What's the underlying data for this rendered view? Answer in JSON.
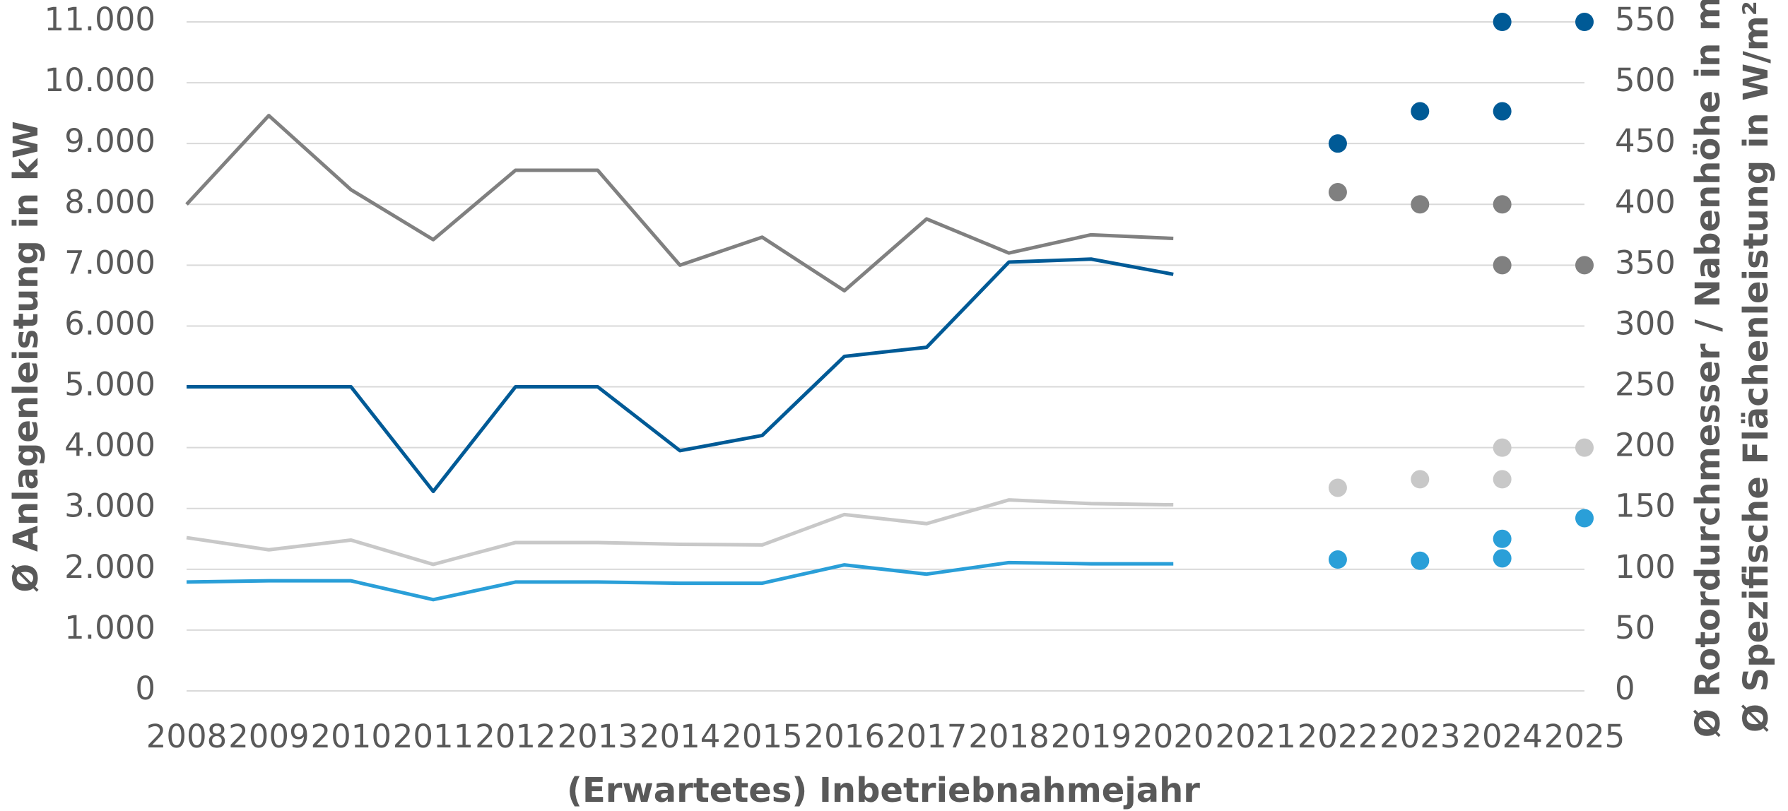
{
  "chart_data": {
    "type": "line",
    "xlabel": "(Erwartetes) Inbetriebnahmejahr",
    "ylabel": "Ø Anlagenleistung in kW",
    "y2label": [
      "Ø Rotordurchmesser / Nabenhöhe in m",
      "Ø Spezifische Flächenleistung in W/m²"
    ],
    "categories": [
      "2008",
      "2009",
      "2010",
      "2011",
      "2012",
      "2013",
      "2014",
      "2015",
      "2016",
      "2017",
      "2018",
      "2019",
      "2020",
      "2021",
      "2022",
      "2023",
      "2024",
      "2025"
    ],
    "ylim": [
      0,
      11000
    ],
    "yticks": [
      {
        "value": 0,
        "label": "0"
      },
      {
        "value": 1000,
        "label": "1.000"
      },
      {
        "value": 2000,
        "label": "2.000"
      },
      {
        "value": 3000,
        "label": "3.000"
      },
      {
        "value": 4000,
        "label": "4.000"
      },
      {
        "value": 5000,
        "label": "5.000"
      },
      {
        "value": 6000,
        "label": "6.000"
      },
      {
        "value": 7000,
        "label": "7.000"
      },
      {
        "value": 8000,
        "label": "8.000"
      },
      {
        "value": 9000,
        "label": "9.000"
      },
      {
        "value": 10000,
        "label": "10.000"
      },
      {
        "value": 11000,
        "label": "11.000"
      }
    ],
    "y2lim": [
      0,
      550
    ],
    "y2ticks": [
      0,
      50,
      100,
      150,
      200,
      250,
      300,
      350,
      400,
      450,
      500,
      550
    ],
    "grid": true,
    "series": [
      {
        "color": "#005a96",
        "values": [
          5000,
          5000,
          5000,
          3280,
          5000,
          5000,
          3950,
          4200,
          5500,
          5650,
          7050,
          7100,
          6850,
          null,
          null,
          null,
          null,
          null
        ]
      },
      {
        "color": "#808080",
        "axis": "y2",
        "values": [
          400,
          473,
          412,
          371,
          428,
          428,
          350,
          373,
          329,
          388,
          360,
          375,
          372,
          null,
          null,
          null,
          null,
          null
        ]
      },
      {
        "color": "#c8c8c8",
        "axis": "y2",
        "values": [
          126,
          116,
          124,
          104,
          122,
          122,
          120.5,
          120,
          145,
          137.5,
          157,
          154,
          153,
          null,
          null,
          null,
          null,
          null
        ]
      },
      {
        "color": "#2a9fd8",
        "axis": "y2",
        "values": [
          89.5,
          90.5,
          90.5,
          75,
          89.5,
          89.5,
          88.5,
          88.5,
          103.6,
          96,
          105.5,
          104.5,
          104.5,
          null,
          null,
          null,
          null,
          null
        ]
      },
      {
        "type": "scatter",
        "color": "#005a96",
        "x": [
          "2022",
          "2023",
          "2024",
          "2024",
          "2025"
        ],
        "values": [
          9000,
          9530,
          9530,
          11000,
          11000
        ]
      },
      {
        "type": "scatter",
        "color": "#808080",
        "axis": "y2",
        "x": [
          "2022",
          "2023",
          "2024",
          "2024",
          "2025"
        ],
        "values": [
          410,
          400,
          400,
          350,
          350
        ]
      },
      {
        "type": "scatter",
        "color": "#c8c8c8",
        "axis": "y2",
        "x": [
          "2022",
          "2023",
          "2024",
          "2024",
          "2025"
        ],
        "values": [
          167,
          174,
          174,
          200,
          200
        ]
      },
      {
        "type": "scatter",
        "color": "#2a9fd8",
        "axis": "y2",
        "x": [
          "2022",
          "2023",
          "2024",
          "2024",
          "2025"
        ],
        "values": [
          108,
          107,
          109,
          125,
          142
        ]
      }
    ]
  }
}
